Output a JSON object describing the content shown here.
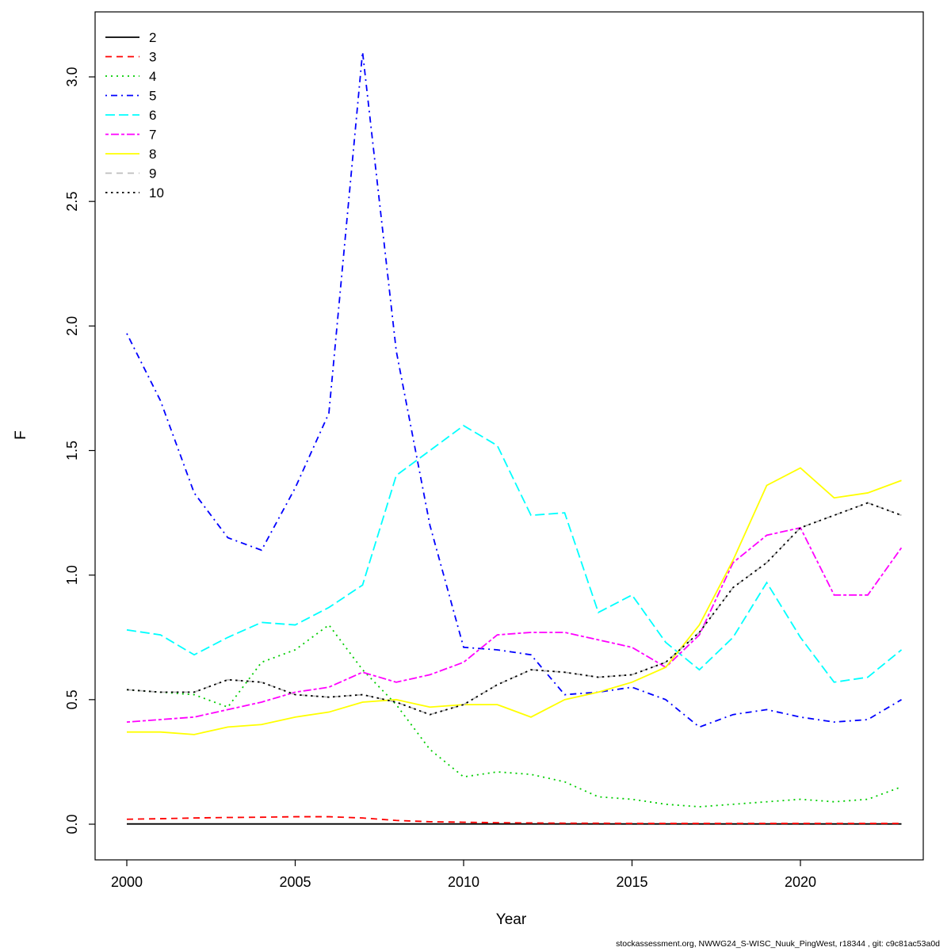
{
  "page": {
    "footer": "stockassessment.org, NWWG24_S-WISC_Nuuk_PingWest, r18344 , git: c9c81ac53a0d"
  },
  "chart_data": {
    "type": "line",
    "title": "",
    "xlabel": "Year",
    "ylabel": "F",
    "grid": false,
    "legend_position": "top-left",
    "x": [
      2000,
      2001,
      2002,
      2003,
      2004,
      2005,
      2006,
      2007,
      2008,
      2009,
      2010,
      2011,
      2012,
      2013,
      2014,
      2015,
      2016,
      2017,
      2018,
      2019,
      2020,
      2021,
      2022,
      2023
    ],
    "xticks": [
      2000,
      2005,
      2010,
      2015,
      2020
    ],
    "xtick_labels": [
      "2000",
      "2005",
      "2010",
      "2015",
      "2020"
    ],
    "yticks": [
      0,
      0.5,
      1,
      1.5,
      2,
      2.5,
      3
    ],
    "ytick_labels": [
      "0.0",
      "0.5",
      "1.0",
      "1.5",
      "2.0",
      "2.5",
      "3.0"
    ],
    "ylim": [
      -0.14,
      3.26
    ],
    "series": [
      {
        "name": "2",
        "color": "#000000",
        "linetype": "solid",
        "values": [
          0.001,
          0.001,
          0.001,
          0.001,
          0.001,
          0.001,
          0.001,
          0.001,
          0.001,
          0.001,
          0.001,
          0.001,
          0.001,
          0.001,
          0.001,
          0.001,
          0.001,
          0.001,
          0.001,
          0.001,
          0.001,
          0.001,
          0.001,
          0.001
        ]
      },
      {
        "name": "3",
        "color": "#ff0000",
        "linetype": "dashed",
        "values": [
          0.02,
          0.022,
          0.025,
          0.027,
          0.028,
          0.03,
          0.03,
          0.025,
          0.015,
          0.01,
          0.008,
          0.006,
          0.005,
          0.004,
          0.004,
          0.003,
          0.003,
          0.003,
          0.003,
          0.003,
          0.003,
          0.003,
          0.003,
          0.003
        ]
      },
      {
        "name": "4",
        "color": "#00cd00",
        "linetype": "dotted",
        "values": [
          0.54,
          0.53,
          0.52,
          0.47,
          0.65,
          0.7,
          0.8,
          0.62,
          0.48,
          0.3,
          0.19,
          0.21,
          0.2,
          0.17,
          0.11,
          0.1,
          0.08,
          0.07,
          0.08,
          0.09,
          0.1,
          0.09,
          0.1,
          0.15
        ]
      },
      {
        "name": "5",
        "color": "#0000ff",
        "linetype": "dotdash",
        "values": [
          1.97,
          1.7,
          1.33,
          1.15,
          1.1,
          1.35,
          1.65,
          3.1,
          1.9,
          1.2,
          0.71,
          0.7,
          0.68,
          0.52,
          0.53,
          0.55,
          0.5,
          0.39,
          0.44,
          0.46,
          0.43,
          0.41,
          0.42,
          0.5
        ]
      },
      {
        "name": "6",
        "color": "#00ffff",
        "linetype": "longdash",
        "values": [
          0.78,
          0.76,
          0.68,
          0.75,
          0.81,
          0.8,
          0.87,
          0.96,
          1.4,
          1.5,
          1.6,
          1.52,
          1.24,
          1.25,
          0.85,
          0.92,
          0.73,
          0.62,
          0.75,
          0.97,
          0.75,
          0.57,
          0.59,
          0.7
        ]
      },
      {
        "name": "7",
        "color": "#ff00ff",
        "linetype": "twodash",
        "values": [
          0.41,
          0.42,
          0.43,
          0.46,
          0.49,
          0.53,
          0.55,
          0.61,
          0.57,
          0.6,
          0.65,
          0.76,
          0.77,
          0.77,
          0.74,
          0.71,
          0.63,
          0.76,
          1.05,
          1.16,
          1.19,
          0.92,
          0.92,
          1.11
        ]
      },
      {
        "name": "8",
        "color": "#ffff00",
        "linetype": "solid",
        "values": [
          0.37,
          0.37,
          0.36,
          0.39,
          0.4,
          0.43,
          0.45,
          0.49,
          0.5,
          0.47,
          0.48,
          0.48,
          0.43,
          0.5,
          0.53,
          0.57,
          0.63,
          0.8,
          1.06,
          1.36,
          1.43,
          1.31,
          1.33,
          1.38
        ]
      },
      {
        "name": "9",
        "color": "#bebebe",
        "linetype": "dashed",
        "values": [
          0.54,
          0.53,
          0.53,
          0.58,
          0.57,
          0.52,
          0.51,
          0.52,
          0.49,
          0.44,
          0.48,
          0.56,
          0.62,
          0.61,
          0.59,
          0.6,
          0.65,
          0.77,
          0.95,
          1.05,
          1.19,
          1.24,
          1.29,
          1.24
        ]
      },
      {
        "name": "10",
        "color": "#000000",
        "linetype": "dotted2",
        "values": [
          0.54,
          0.53,
          0.53,
          0.58,
          0.57,
          0.52,
          0.51,
          0.52,
          0.49,
          0.44,
          0.48,
          0.56,
          0.62,
          0.61,
          0.59,
          0.6,
          0.65,
          0.77,
          0.95,
          1.05,
          1.19,
          1.24,
          1.29,
          1.24
        ]
      }
    ]
  }
}
